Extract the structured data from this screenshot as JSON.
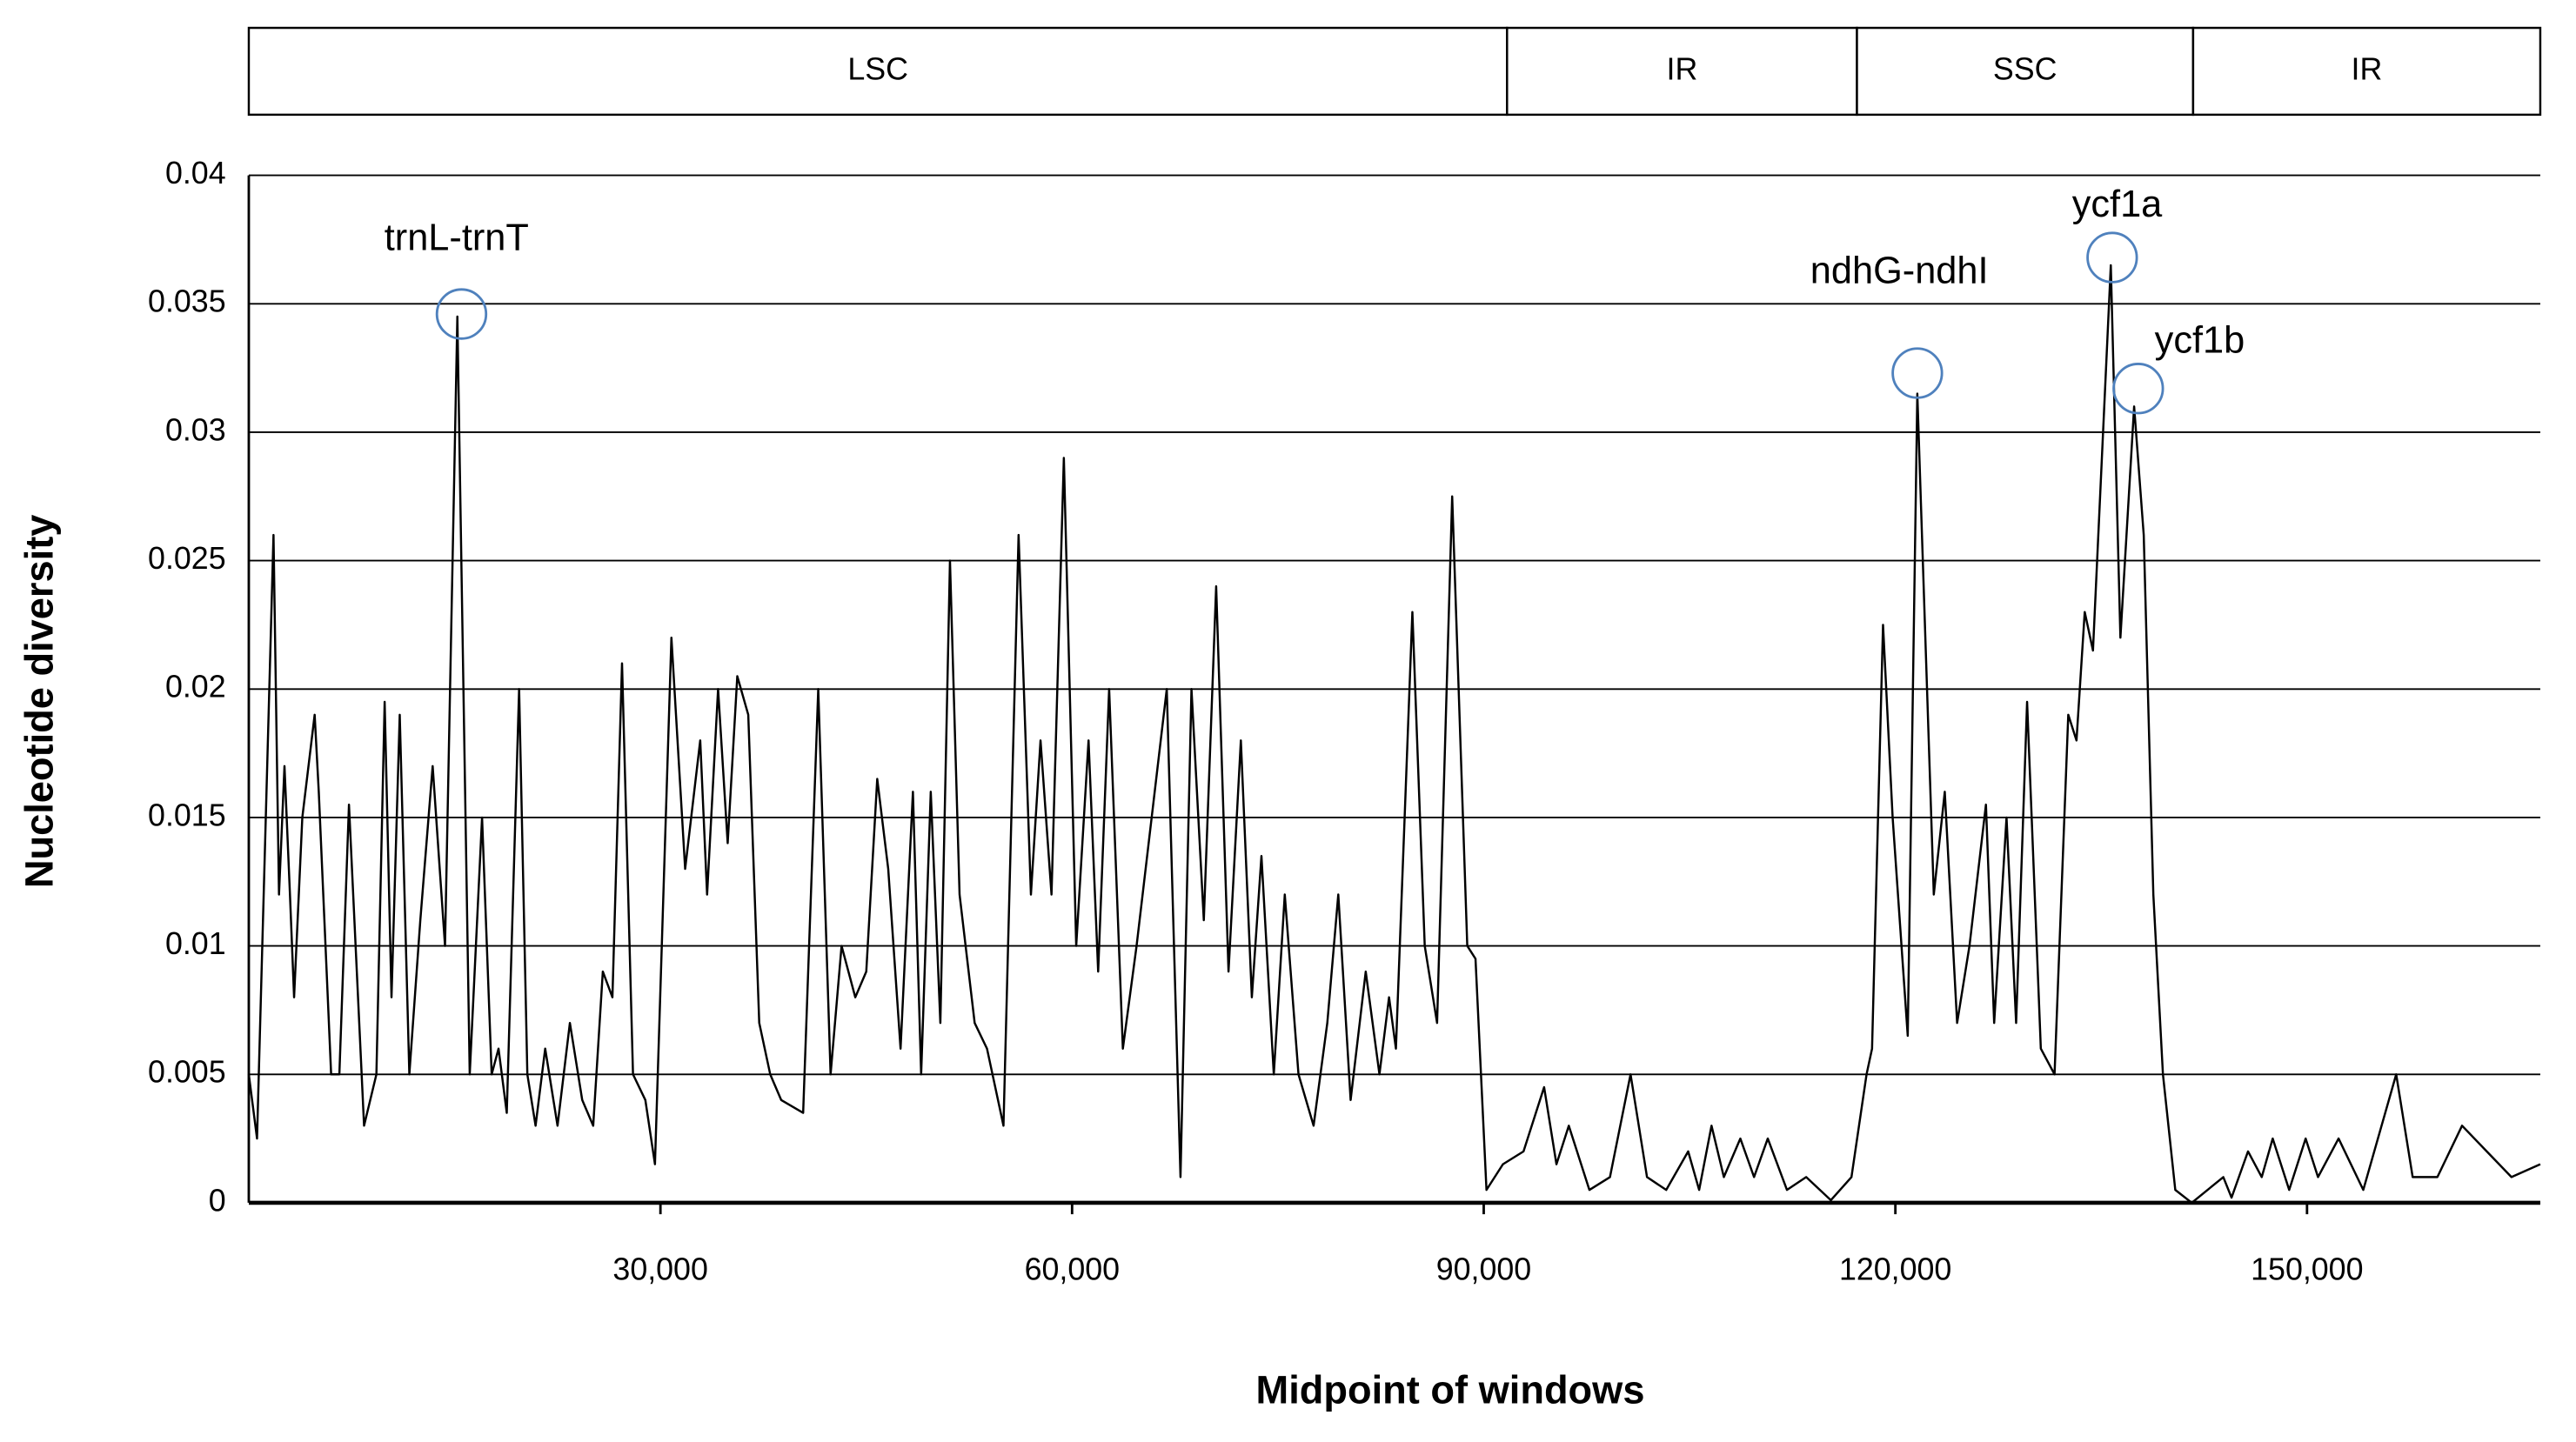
{
  "chart_data": {
    "type": "line",
    "x_label": "Midpoint of windows",
    "y_label": "Nucleotide diversity",
    "xlim": [
      0,
      167000
    ],
    "ylim": [
      0,
      0.04
    ],
    "xticks": [
      {
        "value": 30000,
        "label": "30,000"
      },
      {
        "value": 60000,
        "label": "60,000"
      },
      {
        "value": 90000,
        "label": "90,000"
      },
      {
        "value": 120000,
        "label": "120,000"
      },
      {
        "value": 150000,
        "label": "150,000"
      }
    ],
    "yticks": [
      0,
      0.005,
      0.01,
      0.015,
      0.02,
      0.025,
      0.03,
      0.035,
      0.04
    ],
    "grid": true,
    "regions": [
      {
        "label": "LSC",
        "start": 0,
        "end": 91700
      },
      {
        "label": "IR",
        "start": 91700,
        "end": 117200
      },
      {
        "label": "SSC",
        "start": 117200,
        "end": 141700
      },
      {
        "label": "IR",
        "start": 141700,
        "end": 167000
      }
    ],
    "annotations": [
      {
        "text": "trnL-trnT",
        "x": 15500,
        "y": 0.0346
      },
      {
        "text": "ndhG-ndhI",
        "x": 121600,
        "y": 0.0323
      },
      {
        "text": "ycf1a",
        "x": 135800,
        "y": 0.0368
      },
      {
        "text": "ycf1b",
        "x": 137700,
        "y": 0.0317
      }
    ],
    "annotation_color": "#4f81bd",
    "series": [
      {
        "color": "#000000",
        "x": [
          0,
          600,
          1800,
          2200,
          2600,
          3000,
          3300,
          3900,
          4800,
          5100,
          6000,
          6600,
          7300,
          8400,
          9300,
          9900,
          10400,
          11000,
          11700,
          12500,
          13400,
          14300,
          15200,
          16100,
          17000,
          17700,
          18200,
          18800,
          19700,
          20300,
          20900,
          21600,
          22500,
          23400,
          24300,
          25100,
          25800,
          26500,
          27200,
          28000,
          28900,
          29600,
          30800,
          31800,
          32900,
          33400,
          34200,
          34900,
          35600,
          36400,
          37200,
          38000,
          38800,
          40400,
          41500,
          42400,
          43200,
          44200,
          45000,
          45800,
          46600,
          47500,
          48400,
          49000,
          49700,
          50400,
          51100,
          51800,
          52900,
          53800,
          55000,
          56100,
          57000,
          57700,
          58500,
          59400,
          60300,
          61200,
          61900,
          62700,
          63700,
          64700,
          66900,
          67900,
          68700,
          69600,
          70500,
          71400,
          72300,
          73100,
          73800,
          74700,
          75500,
          76500,
          77600,
          78600,
          79400,
          80300,
          81400,
          82400,
          83100,
          83600,
          84800,
          85700,
          86600,
          87700,
          88800,
          89400,
          90200,
          91400,
          92900,
          94400,
          95300,
          96200,
          97700,
          99200,
          100700,
          101900,
          103300,
          104900,
          105700,
          106600,
          107500,
          108700,
          109700,
          110700,
          112100,
          113500,
          115300,
          116800,
          117900,
          118300,
          119100,
          119800,
          120900,
          121600,
          122800,
          123600,
          124500,
          125400,
          126600,
          127200,
          128100,
          128800,
          129600,
          130600,
          131600,
          132600,
          133200,
          133800,
          134400,
          135700,
          136400,
          137400,
          138100,
          138800,
          139500,
          140400,
          141600,
          143900,
          144500,
          145700,
          146700,
          147500,
          148700,
          149900,
          150800,
          152300,
          154100,
          156500,
          157700,
          159500,
          161300,
          163100,
          164900,
          167000
        ],
        "values": [
          0.005,
          0.0025,
          0.026,
          0.012,
          0.017,
          0.012,
          0.008,
          0.015,
          0.019,
          0.016,
          0.005,
          0.005,
          0.0155,
          0.003,
          0.005,
          0.0195,
          0.008,
          0.019,
          0.005,
          0.011,
          0.017,
          0.01,
          0.0345,
          0.005,
          0.015,
          0.005,
          0.006,
          0.0035,
          0.02,
          0.005,
          0.003,
          0.006,
          0.003,
          0.007,
          0.004,
          0.003,
          0.009,
          0.008,
          0.021,
          0.005,
          0.004,
          0.0015,
          0.022,
          0.013,
          0.018,
          0.012,
          0.02,
          0.014,
          0.0205,
          0.019,
          0.007,
          0.005,
          0.004,
          0.0035,
          0.02,
          0.005,
          0.01,
          0.008,
          0.009,
          0.0165,
          0.013,
          0.006,
          0.016,
          0.005,
          0.016,
          0.007,
          0.025,
          0.012,
          0.007,
          0.006,
          0.003,
          0.026,
          0.012,
          0.018,
          0.012,
          0.029,
          0.01,
          0.018,
          0.009,
          0.02,
          0.006,
          0.01,
          0.02,
          0.001,
          0.02,
          0.011,
          0.024,
          0.009,
          0.018,
          0.008,
          0.0135,
          0.005,
          0.012,
          0.005,
          0.003,
          0.007,
          0.012,
          0.004,
          0.009,
          0.005,
          0.008,
          0.006,
          0.023,
          0.01,
          0.007,
          0.0275,
          0.01,
          0.0095,
          0.0005,
          0.0015,
          0.002,
          0.0045,
          0.0015,
          0.003,
          0.0005,
          0.001,
          0.005,
          0.001,
          0.0005,
          0.002,
          0.0005,
          0.003,
          0.001,
          0.0025,
          0.001,
          0.0025,
          0.0005,
          0.001,
          0.0001,
          0.001,
          0.005,
          0.006,
          0.0225,
          0.015,
          0.0065,
          0.0315,
          0.012,
          0.016,
          0.007,
          0.01,
          0.0155,
          0.007,
          0.015,
          0.007,
          0.0195,
          0.006,
          0.005,
          0.019,
          0.018,
          0.023,
          0.0215,
          0.0365,
          0.022,
          0.031,
          0.026,
          0.012,
          0.005,
          0.0005,
          0,
          0.001,
          0.0002,
          0.002,
          0.001,
          0.0025,
          0.0005,
          0.0025,
          0.001,
          0.0025,
          0.0005,
          0.005,
          0.001,
          0.001,
          0.003,
          0.002,
          0.001,
          0.0015
        ]
      }
    ]
  }
}
